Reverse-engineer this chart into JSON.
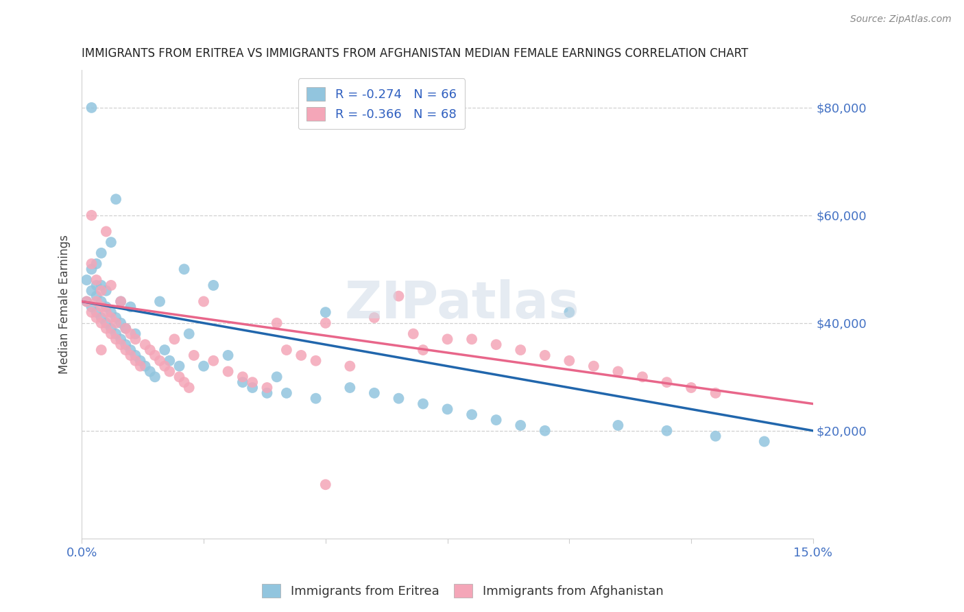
{
  "title": "IMMIGRANTS FROM ERITREA VS IMMIGRANTS FROM AFGHANISTAN MEDIAN FEMALE EARNINGS CORRELATION CHART",
  "source": "Source: ZipAtlas.com",
  "ylabel": "Median Female Earnings",
  "xlim": [
    0.0,
    0.15
  ],
  "ylim": [
    0,
    87000
  ],
  "yticks": [
    20000,
    40000,
    60000,
    80000
  ],
  "ytick_labels": [
    "$20,000",
    "$40,000",
    "$60,000",
    "$80,000"
  ],
  "watermark": "ZIPatlas",
  "eritrea_color": "#92c5de",
  "afghanistan_color": "#f4a6b8",
  "eritrea_line_color": "#2166ac",
  "afghanistan_line_color": "#e8668a",
  "ytick_color": "#4472c4",
  "xtick_color": "#4472c4",
  "eritrea_R": -0.274,
  "eritrea_N": 66,
  "afghanistan_R": -0.366,
  "afghanistan_N": 68,
  "eritrea_trend_y0": 44000,
  "eritrea_trend_y1": 20000,
  "afghanistan_trend_y0": 44000,
  "afghanistan_trend_y1": 25000,
  "eritrea_x": [
    0.001,
    0.001,
    0.002,
    0.002,
    0.002,
    0.003,
    0.003,
    0.003,
    0.003,
    0.004,
    0.004,
    0.004,
    0.004,
    0.005,
    0.005,
    0.005,
    0.006,
    0.006,
    0.006,
    0.007,
    0.007,
    0.007,
    0.008,
    0.008,
    0.008,
    0.009,
    0.009,
    0.01,
    0.01,
    0.011,
    0.011,
    0.012,
    0.013,
    0.014,
    0.015,
    0.016,
    0.017,
    0.018,
    0.02,
    0.021,
    0.022,
    0.025,
    0.027,
    0.03,
    0.033,
    0.035,
    0.038,
    0.04,
    0.042,
    0.048,
    0.05,
    0.055,
    0.06,
    0.065,
    0.07,
    0.075,
    0.08,
    0.085,
    0.09,
    0.095,
    0.1,
    0.11,
    0.12,
    0.13,
    0.14,
    0.002
  ],
  "eritrea_y": [
    44000,
    48000,
    43000,
    46000,
    50000,
    42000,
    45000,
    47000,
    51000,
    41000,
    44000,
    47000,
    53000,
    40000,
    43000,
    46000,
    39000,
    42000,
    55000,
    38000,
    41000,
    63000,
    37000,
    40000,
    44000,
    36000,
    39000,
    35000,
    43000,
    34000,
    38000,
    33000,
    32000,
    31000,
    30000,
    44000,
    35000,
    33000,
    32000,
    50000,
    38000,
    32000,
    47000,
    34000,
    29000,
    28000,
    27000,
    30000,
    27000,
    26000,
    42000,
    28000,
    27000,
    26000,
    25000,
    24000,
    23000,
    22000,
    21000,
    20000,
    42000,
    21000,
    20000,
    19000,
    18000,
    80000
  ],
  "afghanistan_x": [
    0.001,
    0.002,
    0.002,
    0.003,
    0.003,
    0.003,
    0.004,
    0.004,
    0.004,
    0.005,
    0.005,
    0.005,
    0.006,
    0.006,
    0.006,
    0.007,
    0.007,
    0.008,
    0.008,
    0.009,
    0.009,
    0.01,
    0.01,
    0.011,
    0.011,
    0.012,
    0.013,
    0.014,
    0.015,
    0.016,
    0.017,
    0.018,
    0.019,
    0.02,
    0.021,
    0.022,
    0.023,
    0.025,
    0.027,
    0.03,
    0.033,
    0.035,
    0.038,
    0.04,
    0.042,
    0.045,
    0.048,
    0.05,
    0.055,
    0.06,
    0.065,
    0.068,
    0.07,
    0.075,
    0.08,
    0.085,
    0.09,
    0.095,
    0.1,
    0.105,
    0.11,
    0.115,
    0.12,
    0.125,
    0.13,
    0.002,
    0.004,
    0.05
  ],
  "afghanistan_y": [
    44000,
    42000,
    60000,
    41000,
    44000,
    48000,
    40000,
    43000,
    46000,
    39000,
    42000,
    57000,
    38000,
    41000,
    47000,
    37000,
    40000,
    36000,
    44000,
    35000,
    39000,
    34000,
    38000,
    33000,
    37000,
    32000,
    36000,
    35000,
    34000,
    33000,
    32000,
    31000,
    37000,
    30000,
    29000,
    28000,
    34000,
    44000,
    33000,
    31000,
    30000,
    29000,
    28000,
    40000,
    35000,
    34000,
    33000,
    40000,
    32000,
    41000,
    45000,
    38000,
    35000,
    37000,
    37000,
    36000,
    35000,
    34000,
    33000,
    32000,
    31000,
    30000,
    29000,
    28000,
    27000,
    51000,
    35000,
    10000
  ]
}
